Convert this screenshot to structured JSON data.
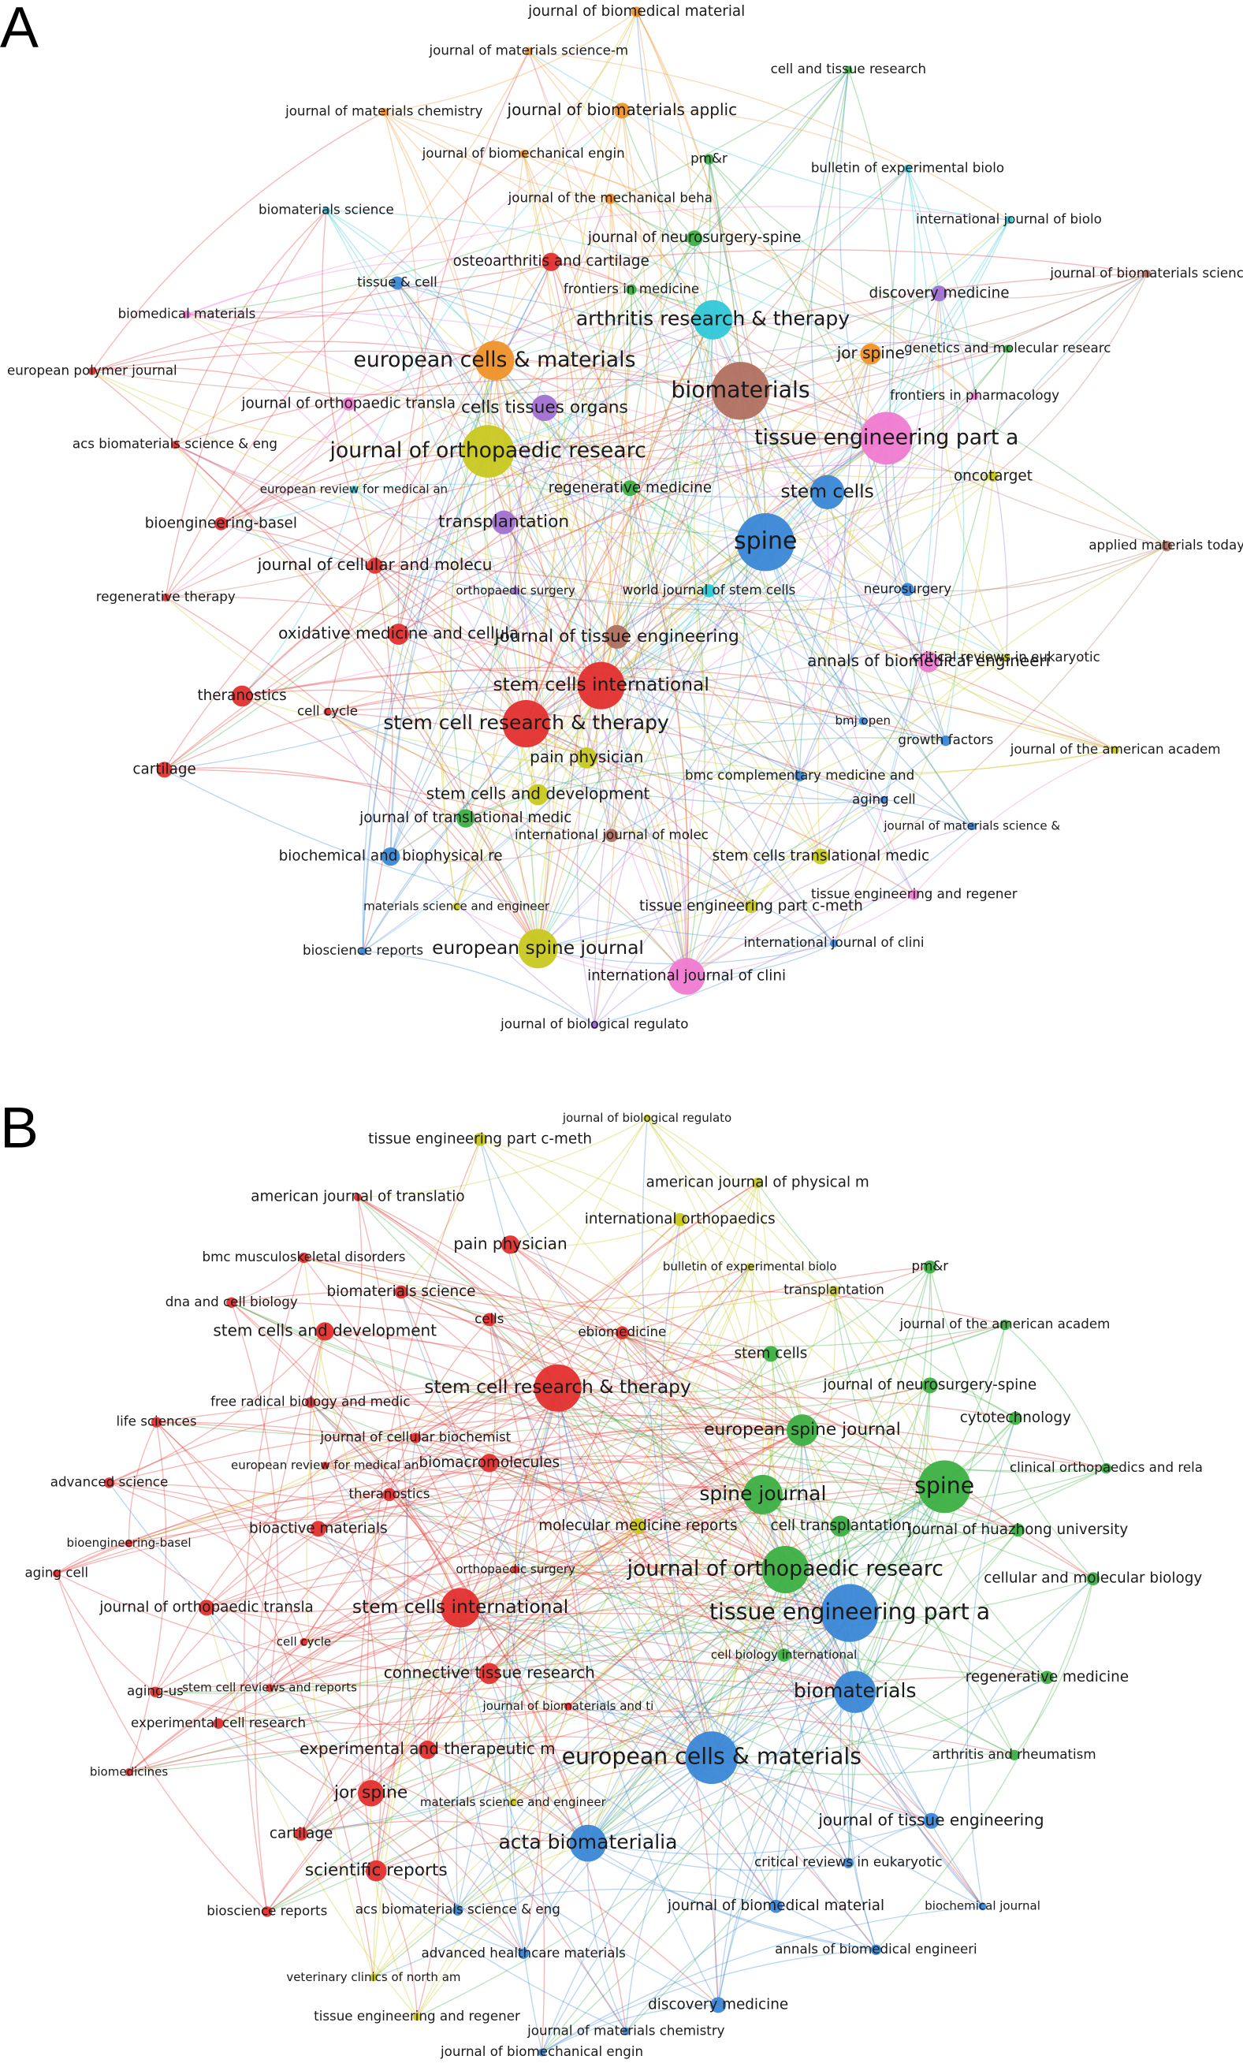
{
  "panels": [
    {
      "letter": "A",
      "nodes": [
        {
          "label": "journal of biomedical material",
          "color": "#f0922a"
        },
        {
          "label": "journal of materials science-m",
          "color": "#f0922a"
        },
        {
          "label": "cell and tissue research",
          "color": "#3cb043"
        },
        {
          "label": "journal of materials chemistry",
          "color": "#f0922a"
        },
        {
          "label": "journal of biomaterials applic",
          "color": "#f0922a"
        },
        {
          "label": "journal of biomechanical engin",
          "color": "#f0922a"
        },
        {
          "label": "pm&r",
          "color": "#3cb043"
        },
        {
          "label": "bulletin of experimental biolo",
          "color": "#30c8d8"
        },
        {
          "label": "journal of the mechanical beha",
          "color": "#f0922a"
        },
        {
          "label": "biomaterials science",
          "color": "#30c8d8"
        },
        {
          "label": "international journal of biolo",
          "color": "#30c8d8"
        },
        {
          "label": "journal of neurosurgery-spine",
          "color": "#3cb043"
        },
        {
          "label": "osteoarthritis and cartilage",
          "color": "#e3302f"
        },
        {
          "label": "journal of biomaterials scienc",
          "color": "#b07060"
        },
        {
          "label": "tissue & cell",
          "color": "#3a87d6"
        },
        {
          "label": "frontiers in medicine",
          "color": "#3cb043"
        },
        {
          "label": "discovery medicine",
          "color": "#a070d0"
        },
        {
          "label": "biomedical materials",
          "color": "#f07ad0"
        },
        {
          "label": "arthritis research & therapy",
          "color": "#30c8d8"
        },
        {
          "label": "european cells & materials",
          "color": "#f0922a"
        },
        {
          "label": "jor spine",
          "color": "#f0922a"
        },
        {
          "label": "genetics and molecular researc",
          "color": "#3cb043"
        },
        {
          "label": "european polymer journal",
          "color": "#e3302f"
        },
        {
          "label": "biomaterials",
          "color": "#b07060"
        },
        {
          "label": "frontiers in pharmacology",
          "color": "#f07ad0"
        },
        {
          "label": "journal of orthopaedic transla",
          "color": "#f07ad0"
        },
        {
          "label": "cells tissues organs",
          "color": "#a070d0"
        },
        {
          "label": "tissue engineering part a",
          "color": "#f07ad0"
        },
        {
          "label": "acs biomaterials science & eng",
          "color": "#e3302f"
        },
        {
          "label": "journal of orthopaedic researc",
          "color": "#c8c820"
        },
        {
          "label": "oncotarget",
          "color": "#c8c820"
        },
        {
          "label": "european review for medical an",
          "color": "#30c8d8"
        },
        {
          "label": "regenerative medicine",
          "color": "#3cb043"
        },
        {
          "label": "stem cells",
          "color": "#3a87d6"
        },
        {
          "label": "bioengineering-basel",
          "color": "#e3302f"
        },
        {
          "label": "transplantation",
          "color": "#a070d0"
        },
        {
          "label": "applied materials today",
          "color": "#b07060"
        },
        {
          "label": "spine",
          "color": "#3a87d6"
        },
        {
          "label": "journal of cellular and molecu",
          "color": "#e3302f"
        },
        {
          "label": "orthopaedic surgery",
          "color": "#a070d0"
        },
        {
          "label": "world journal of stem cells",
          "color": "#30c8d8"
        },
        {
          "label": "neurosurgery",
          "color": "#3a87d6"
        },
        {
          "label": "regenerative therapy",
          "color": "#e3302f"
        },
        {
          "label": "critical reviews in eukaryotic",
          "color": "#c8c820"
        },
        {
          "label": "oxidative medicine and cellula",
          "color": "#e3302f"
        },
        {
          "label": "journal of tissue engineering",
          "color": "#b07060"
        },
        {
          "label": "annals of biomedical engineeri",
          "color": "#f07ad0"
        },
        {
          "label": "stem cells international",
          "color": "#e3302f"
        },
        {
          "label": "theranostics",
          "color": "#e3302f"
        },
        {
          "label": "cell cycle",
          "color": "#e3302f"
        },
        {
          "label": "stem cell research & therapy",
          "color": "#e3302f"
        },
        {
          "label": "bmj open",
          "color": "#3a87d6"
        },
        {
          "label": "growth factors",
          "color": "#3a87d6"
        },
        {
          "label": "journal of the american academ",
          "color": "#c8c820"
        },
        {
          "label": "cartilage",
          "color": "#e3302f"
        },
        {
          "label": "pain physician",
          "color": "#c8c820"
        },
        {
          "label": "bmc complementary medicine and",
          "color": "#3a87d6"
        },
        {
          "label": "stem cells and development",
          "color": "#c8c820"
        },
        {
          "label": "aging cell",
          "color": "#3a87d6"
        },
        {
          "label": "journal of translational medic",
          "color": "#3cb043"
        },
        {
          "label": "international journal of molec",
          "color": "#b07060"
        },
        {
          "label": "journal of materials science &",
          "color": "#3a87d6"
        },
        {
          "label": "stem cells translational medic",
          "color": "#c8c820"
        },
        {
          "label": "biochemical and biophysical re",
          "color": "#3a87d6"
        },
        {
          "label": "materials science and engineer",
          "color": "#c8c820"
        },
        {
          "label": "tissue engineering part c-meth",
          "color": "#c8c820"
        },
        {
          "label": "tissue engineering and regener",
          "color": "#f07ad0"
        },
        {
          "label": "bioscience reports",
          "color": "#3a87d6"
        },
        {
          "label": "european spine journal",
          "color": "#c8c820"
        },
        {
          "label": "international journal of clini",
          "color": "#3a87d6"
        },
        {
          "label": "journal of biological regulato",
          "color": "#a070d0"
        },
        {
          "label": "international journal of clini",
          "color": "#f07ad0"
        }
      ]
    },
    {
      "letter": "B",
      "nodes": [
        {
          "label": "journal of biological regulato",
          "color": "#c8c820"
        },
        {
          "label": "tissue engineering part c-meth",
          "color": "#c8c820"
        },
        {
          "label": "american journal of physical m",
          "color": "#c8c820"
        },
        {
          "label": "american journal of translatio",
          "color": "#e3302f"
        },
        {
          "label": "international orthopaedics",
          "color": "#c8c820"
        },
        {
          "label": "pain physician",
          "color": "#e3302f"
        },
        {
          "label": "bmc musculoskeletal disorders",
          "color": "#e3302f"
        },
        {
          "label": "bulletin of experimental biolo",
          "color": "#c8c820"
        },
        {
          "label": "pm&r",
          "color": "#3cb043"
        },
        {
          "label": "dna and cell biology",
          "color": "#e3302f"
        },
        {
          "label": "biomaterials science",
          "color": "#e3302f"
        },
        {
          "label": "transplantation",
          "color": "#c8c820"
        },
        {
          "label": "cells",
          "color": "#e3302f"
        },
        {
          "label": "journal of the american academ",
          "color": "#3cb043"
        },
        {
          "label": "stem cells and development",
          "color": "#e3302f"
        },
        {
          "label": "ebiomedicine",
          "color": "#e3302f"
        },
        {
          "label": "stem cells",
          "color": "#3cb043"
        },
        {
          "label": "stem cell research & therapy",
          "color": "#e3302f"
        },
        {
          "label": "journal of neurosurgery-spine",
          "color": "#3cb043"
        },
        {
          "label": "free radical biology and medic",
          "color": "#e3302f"
        },
        {
          "label": "life sciences",
          "color": "#e3302f"
        },
        {
          "label": "cytotechnology",
          "color": "#3cb043"
        },
        {
          "label": "european spine journal",
          "color": "#3cb043"
        },
        {
          "label": "journal of cellular biochemist",
          "color": "#e3302f"
        },
        {
          "label": "european review for medical an",
          "color": "#e3302f"
        },
        {
          "label": "biomacromolecules",
          "color": "#e3302f"
        },
        {
          "label": "clinical orthopaedics and rela",
          "color": "#3cb043"
        },
        {
          "label": "advanced science",
          "color": "#e3302f"
        },
        {
          "label": "spine",
          "color": "#3cb043"
        },
        {
          "label": "theranostics",
          "color": "#e3302f"
        },
        {
          "label": "spine journal",
          "color": "#3cb043"
        },
        {
          "label": "bioengineering-basel",
          "color": "#e3302f"
        },
        {
          "label": "molecular medicine reports",
          "color": "#c8c820"
        },
        {
          "label": "cell transplantation",
          "color": "#3cb043"
        },
        {
          "label": "journal of huazhong university",
          "color": "#3cb043"
        },
        {
          "label": "bioactive materials",
          "color": "#e3302f"
        },
        {
          "label": "aging cell",
          "color": "#e3302f"
        },
        {
          "label": "orthopaedic surgery",
          "color": "#e3302f"
        },
        {
          "label": "journal of orthopaedic researc",
          "color": "#3cb043"
        },
        {
          "label": "cellular and molecular biology",
          "color": "#3cb043"
        },
        {
          "label": "journal of orthopaedic transla",
          "color": "#e3302f"
        },
        {
          "label": "stem cells international",
          "color": "#e3302f"
        },
        {
          "label": "tissue engineering part a",
          "color": "#3a87d6"
        },
        {
          "label": "cell cycle",
          "color": "#e3302f"
        },
        {
          "label": "cell biology international",
          "color": "#3cb043"
        },
        {
          "label": "connective tissue research",
          "color": "#e3302f"
        },
        {
          "label": "regenerative medicine",
          "color": "#3cb043"
        },
        {
          "label": "aging-us",
          "color": "#e3302f"
        },
        {
          "label": "stem cell reviews and reports",
          "color": "#e3302f"
        },
        {
          "label": "biomaterials",
          "color": "#3a87d6"
        },
        {
          "label": "journal of biomaterials and ti",
          "color": "#e3302f"
        },
        {
          "label": "experimental cell research",
          "color": "#e3302f"
        },
        {
          "label": "experimental and therapeutic m",
          "color": "#e3302f"
        },
        {
          "label": "european cells & materials",
          "color": "#3a87d6"
        },
        {
          "label": "arthritis and rheumatism",
          "color": "#3cb043"
        },
        {
          "label": "biomedicines",
          "color": "#e3302f"
        },
        {
          "label": "jor spine",
          "color": "#e3302f"
        },
        {
          "label": "materials science and engineer",
          "color": "#c8c820"
        },
        {
          "label": "journal of tissue engineering",
          "color": "#3a87d6"
        },
        {
          "label": "cartilage",
          "color": "#e3302f"
        },
        {
          "label": "acta biomaterialia",
          "color": "#3a87d6"
        },
        {
          "label": "critical reviews in eukaryotic",
          "color": "#3a87d6"
        },
        {
          "label": "scientific reports",
          "color": "#e3302f"
        },
        {
          "label": "journal of biomedical material",
          "color": "#3a87d6"
        },
        {
          "label": "acs biomaterials science & eng",
          "color": "#3a87d6"
        },
        {
          "label": "bioscience reports",
          "color": "#e3302f"
        },
        {
          "label": "biochemical journal",
          "color": "#3a87d6"
        },
        {
          "label": "advanced healthcare materials",
          "color": "#3a87d6"
        },
        {
          "label": "annals of biomedical engineeri",
          "color": "#3a87d6"
        },
        {
          "label": "veterinary clinics of north am",
          "color": "#c8c820"
        },
        {
          "label": "discovery medicine",
          "color": "#3a87d6"
        },
        {
          "label": "tissue engineering and regener",
          "color": "#c8c820"
        },
        {
          "label": "journal of materials chemistry",
          "color": "#3a87d6"
        },
        {
          "label": "journal of biomechanical engin",
          "color": "#3a87d6"
        }
      ]
    }
  ]
}
